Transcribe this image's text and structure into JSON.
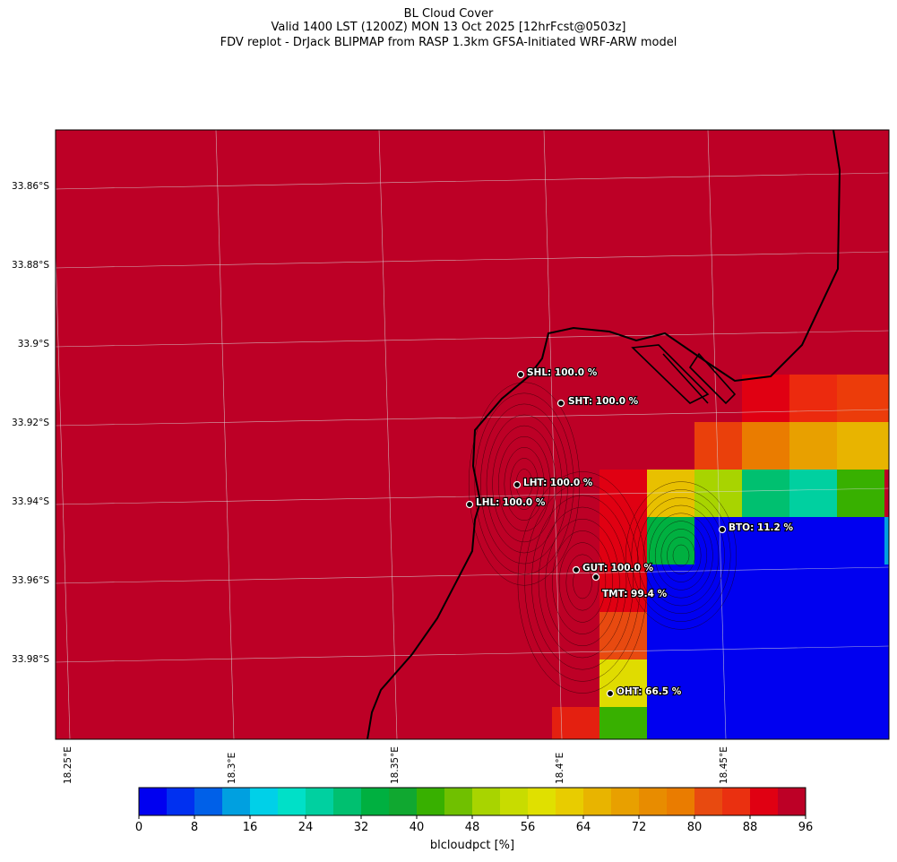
{
  "header": {
    "title": "BL Cloud Cover",
    "line2": "Valid 1400 LST (1200Z) MON 13 Oct 2025 [12hrFcst@0503z]",
    "line3": "FDV replot - DrJack BLIPMAP from RASP 1.3km GFSA-Initiated WRF-ARW model"
  },
  "map": {
    "background_color": "#bd0026",
    "lat_labels": [
      "33.86°S",
      "33.88°S",
      "33.9°S",
      "33.92°S",
      "33.94°S",
      "33.96°S",
      "33.98°S"
    ],
    "lon_labels": [
      "18.25°E",
      "18.3°E",
      "18.35°E",
      "18.4°E",
      "18.45°E"
    ],
    "stations": [
      {
        "code": "SHL",
        "label": "SHL: 100.0 %"
      },
      {
        "code": "SHT",
        "label": "SHT: 100.0 %"
      },
      {
        "code": "LHT",
        "label": "LHT: 100.0 %"
      },
      {
        "code": "LHL",
        "label": "LHL: 100.0 %"
      },
      {
        "code": "BTO",
        "label": "BTO: 11.2 %"
      },
      {
        "code": "GUT",
        "label": "GUT: 100.0 %"
      },
      {
        "code": "TMT",
        "label": "TMT: 99.4 %"
      },
      {
        "code": "OHT",
        "label": "OHT: 66.5 %"
      }
    ],
    "grid_cells": [
      {
        "value": 94,
        "color": "#e00012"
      },
      {
        "value": 90,
        "color": "#ec2a0e"
      },
      {
        "value": 86,
        "color": "#ec3c0a"
      },
      {
        "value": 86,
        "color": "#ea400b"
      },
      {
        "value": 78,
        "color": "#ea7c00"
      },
      {
        "value": 74,
        "color": "#e8a000"
      },
      {
        "value": 66,
        "color": "#e8b400"
      },
      {
        "value": 96,
        "color": "#e00012"
      },
      {
        "value": 58,
        "color": "#e8c000"
      },
      {
        "value": 48,
        "color": "#a8d400"
      },
      {
        "value": 26,
        "color": "#00c070"
      },
      {
        "value": 22,
        "color": "#00d0a0"
      },
      {
        "value": 40,
        "color": "#38b000"
      },
      {
        "value": 94,
        "color": "#e00012"
      },
      {
        "value": 34,
        "color": "#00b040"
      },
      {
        "value": 0,
        "color": "#0000f0"
      },
      {
        "value": 14,
        "color": "#00a0e0"
      },
      {
        "value": 94,
        "color": "#e00012"
      },
      {
        "value": 0,
        "color": "#0000f0"
      },
      {
        "value": 84,
        "color": "#e84a10"
      },
      {
        "value": 0,
        "color": "#0000f0"
      },
      {
        "value": 0,
        "color": "#0000f0"
      },
      {
        "value": 60,
        "color": "#e0dc00"
      },
      {
        "value": 0,
        "color": "#0000f0"
      },
      {
        "value": 92,
        "color": "#e42010"
      },
      {
        "value": 36,
        "color": "#38b000"
      },
      {
        "value": 0,
        "color": "#0000f0"
      }
    ]
  },
  "colorbar": {
    "colors": [
      "#0000f0",
      "#0030f0",
      "#0060e8",
      "#00a0e0",
      "#00d0e8",
      "#00e0c8",
      "#00d0a0",
      "#00c070",
      "#00b040",
      "#10a830",
      "#38b000",
      "#70c000",
      "#a8d400",
      "#c8dc00",
      "#e0e000",
      "#e8cc00",
      "#e8b400",
      "#e8a000",
      "#e88c00",
      "#ea7c00",
      "#e84a10",
      "#ea3010",
      "#e00012",
      "#bd0026"
    ],
    "tick_labels": [
      "0",
      "8",
      "16",
      "24",
      "32",
      "40",
      "48",
      "56",
      "64",
      "72",
      "80",
      "88",
      "96"
    ],
    "label": "blcloudpct [%]"
  }
}
